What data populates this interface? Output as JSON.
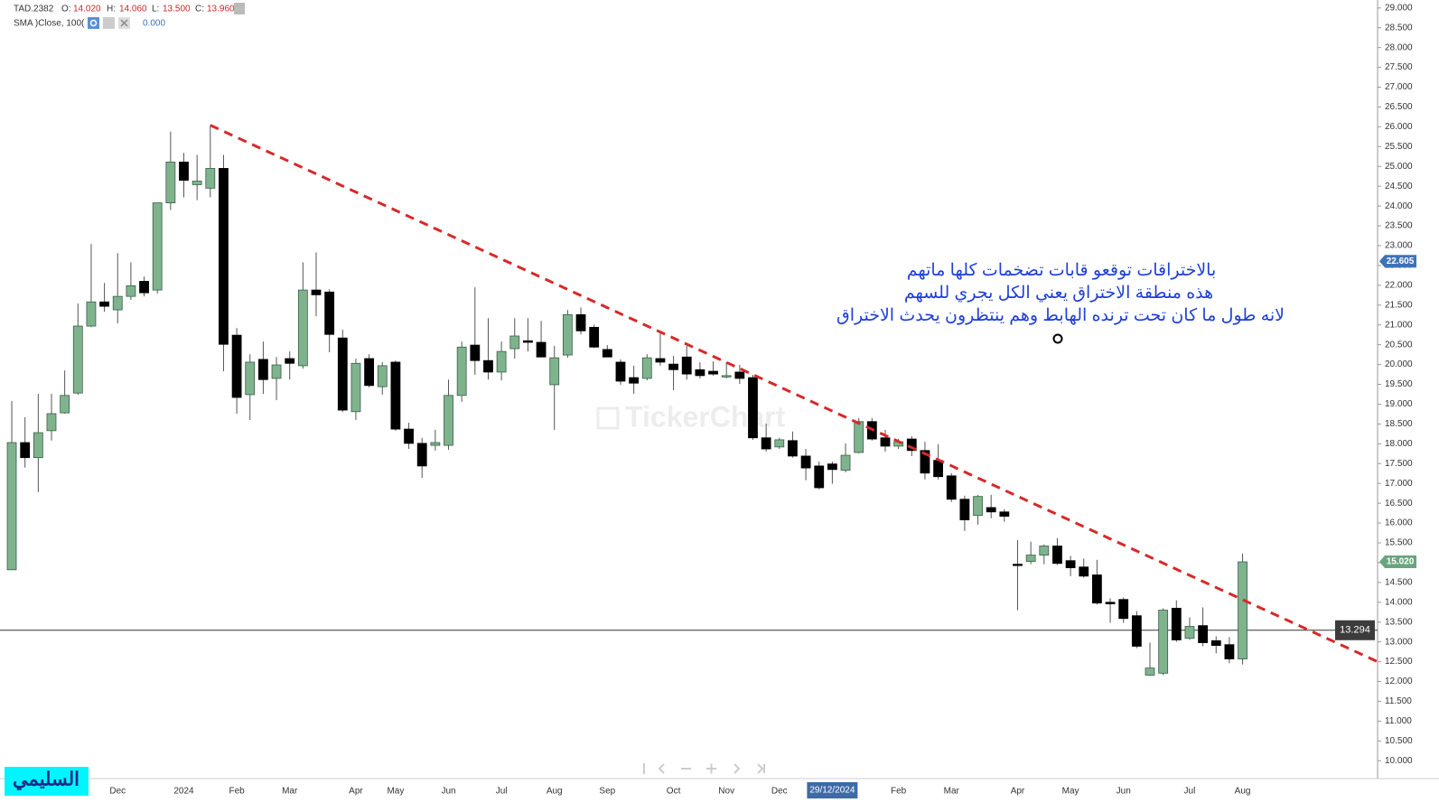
{
  "chart_data": {
    "type": "candlestick",
    "header": {
      "symbol": "TAD.2382",
      "fields": [
        {
          "label": "O:",
          "value": "14.020"
        },
        {
          "label": "H:",
          "value": "14.060"
        },
        {
          "label": "L:",
          "value": "13.500"
        },
        {
          "label": "C:",
          "value": "13.960"
        }
      ],
      "indicator": "SMA )Close, 100(",
      "indicator_value": "0.000"
    },
    "categories": [
      null,
      null,
      null,
      null,
      null,
      null,
      null,
      null,
      "Dec",
      null,
      null,
      null,
      null,
      "2024",
      null,
      null,
      null,
      "Feb",
      null,
      null,
      null,
      "Mar",
      null,
      null,
      null,
      null,
      "Apr",
      null,
      null,
      "May",
      null,
      null,
      null,
      "Jun",
      null,
      null,
      null,
      "Jul",
      null,
      null,
      null,
      "Aug",
      null,
      null,
      null,
      "Sep",
      null,
      null,
      null,
      null,
      "Oct",
      null,
      null,
      null,
      "Nov",
      null,
      null,
      null,
      "Dec",
      null,
      null,
      null,
      "29/12/2024",
      null,
      null,
      null,
      null,
      "Feb",
      null,
      null,
      null,
      "Mar",
      null,
      null,
      null,
      null,
      "Apr",
      null,
      null,
      null,
      "May",
      null,
      null,
      null,
      "Jun",
      null,
      null,
      null,
      null,
      "Jul",
      null,
      null,
      null,
      "Aug"
    ],
    "open": [
      14.82,
      18.03,
      17.65,
      18.33,
      18.78,
      19.28,
      20.97,
      21.58,
      21.38,
      21.72,
      22.1,
      21.88,
      24.08,
      25.11,
      24.54,
      24.45,
      24.95,
      20.74,
      19.24,
      20.13,
      19.65,
      20.15,
      19.97,
      21.88,
      21.83,
      20.67,
      18.81,
      20.15,
      19.44,
      20.06,
      18.37,
      18.01,
      17.96,
      17.96,
      19.22,
      20.49,
      20.1,
      19.81,
      20.4,
      20.6,
      20.56,
      19.49,
      20.24,
      21.26,
      20.94,
      20.38,
      20.06,
      19.67,
      19.65,
      20.15,
      20.01,
      20.19,
      19.87,
      19.83,
      19.69,
      19.81,
      19.67,
      18.15,
      17.92,
      18.08,
      17.69,
      17.44,
      17.49,
      17.33,
      17.78,
      18.56,
      18.15,
      17.94,
      18.12,
      17.83,
      17.58,
      17.19,
      16.6,
      16.19,
      16.39,
      16.28,
      14.96,
      15.03,
      15.19,
      15.42,
      15.05,
      14.89,
      14.69,
      14.0,
      14.07,
      13.66,
      12.16,
      12.21,
      13.85,
      13.09,
      13.41,
      13.03,
      12.93,
      12.57
    ],
    "high": [
      19.08,
      18.67,
      19.26,
      19.26,
      19.85,
      21.54,
      23.04,
      22.06,
      22.81,
      22.58,
      22.22,
      24.08,
      25.88,
      25.34,
      25.29,
      26.04,
      25.29,
      20.92,
      20.26,
      20.58,
      20.19,
      20.33,
      22.58,
      22.83,
      21.9,
      20.88,
      20.15,
      20.26,
      20.06,
      20.1,
      18.53,
      18.15,
      18.35,
      19.62,
      20.58,
      21.95,
      21.17,
      20.58,
      21.17,
      21.17,
      21.1,
      20.47,
      21.38,
      21.44,
      21.01,
      20.49,
      20.13,
      19.97,
      20.26,
      20.79,
      20.22,
      20.47,
      20.06,
      20.08,
      20.06,
      19.99,
      19.74,
      18.51,
      18.15,
      18.31,
      17.87,
      17.55,
      17.55,
      18.01,
      18.65,
      18.65,
      18.35,
      18.12,
      18.19,
      18.05,
      17.99,
      17.26,
      16.69,
      16.71,
      16.71,
      16.35,
      15.57,
      15.53,
      15.46,
      15.62,
      15.17,
      15.1,
      15.07,
      14.1,
      14.12,
      13.78,
      12.98,
      13.85,
      14.05,
      13.62,
      13.87,
      13.14,
      13.12,
      15.23
    ],
    "low": [
      14.82,
      17.4,
      16.78,
      18.08,
      18.76,
      19.24,
      20.94,
      21.33,
      21.04,
      21.63,
      21.72,
      21.79,
      23.9,
      24.22,
      24.15,
      24.22,
      19.83,
      18.76,
      18.6,
      19.26,
      19.1,
      19.62,
      19.9,
      21.22,
      20.31,
      18.8,
      18.6,
      19.42,
      19.24,
      18.33,
      17.87,
      17.14,
      17.83,
      17.85,
      19.06,
      19.74,
      19.62,
      19.6,
      20.15,
      20.33,
      20.19,
      18.35,
      20.17,
      20.76,
      20.42,
      20.19,
      19.49,
      19.26,
      19.6,
      19.97,
      19.35,
      19.62,
      19.65,
      19.72,
      19.65,
      19.51,
      18.1,
      17.8,
      17.87,
      17.65,
      17.08,
      16.85,
      16.99,
      17.28,
      17.76,
      18.08,
      17.8,
      17.87,
      17.69,
      17.1,
      17.1,
      16.53,
      15.8,
      15.96,
      16.12,
      16.03,
      13.8,
      14.96,
      14.96,
      14.94,
      14.66,
      14.62,
      13.94,
      13.48,
      13.48,
      12.84,
      12.14,
      12.16,
      13.0,
      13.05,
      12.89,
      12.71,
      12.46,
      12.43
    ],
    "close": [
      18.03,
      17.65,
      18.28,
      18.76,
      19.22,
      20.97,
      21.58,
      21.47,
      21.72,
      21.99,
      21.81,
      24.08,
      25.11,
      24.65,
      24.63,
      24.95,
      20.51,
      19.17,
      20.06,
      19.62,
      19.99,
      20.03,
      21.88,
      21.76,
      20.76,
      18.85,
      20.03,
      19.47,
      19.97,
      18.37,
      18.01,
      17.44,
      18.03,
      19.22,
      20.44,
      20.1,
      19.81,
      20.33,
      20.72,
      20.56,
      20.19,
      20.17,
      21.26,
      20.85,
      20.44,
      20.19,
      19.58,
      19.53,
      20.17,
      20.06,
      19.87,
      19.76,
      19.72,
      19.76,
      19.72,
      19.65,
      18.15,
      17.87,
      18.1,
      17.69,
      17.39,
      16.89,
      17.35,
      17.71,
      18.56,
      18.12,
      17.94,
      18.05,
      17.83,
      17.26,
      17.17,
      16.6,
      16.08,
      16.67,
      16.28,
      16.17,
      14.94,
      15.19,
      15.42,
      14.98,
      14.87,
      14.66,
      13.98,
      13.96,
      13.59,
      12.89,
      12.34,
      13.8,
      13.05,
      13.39,
      12.98,
      12.91,
      12.57,
      15.02
    ],
    "up_color": "#7fb38e",
    "down_color": "#000000",
    "xlim": [
      -0.89,
      103.2
    ],
    "ylim": [
      9.55,
      29.2
    ],
    "yticks": [
      {
        "value": 10,
        "label": "10.000"
      },
      {
        "value": 10.5,
        "label": "10.500"
      },
      {
        "value": 11,
        "label": "11.000"
      },
      {
        "value": 11.5,
        "label": "11.500"
      },
      {
        "value": 12,
        "label": "12.000"
      },
      {
        "value": 12.5,
        "label": "12.500"
      },
      {
        "value": 13,
        "label": "13.000"
      },
      {
        "value": 13.5,
        "label": "13.500"
      },
      {
        "value": 14,
        "label": "14.000"
      },
      {
        "value": 14.5,
        "label": "14.500"
      },
      {
        "value": 15,
        "label": "15.000"
      },
      {
        "value": 15.5,
        "label": "15.500"
      },
      {
        "value": 16,
        "label": "16.000"
      },
      {
        "value": 16.5,
        "label": "16.500"
      },
      {
        "value": 17,
        "label": "17.000"
      },
      {
        "value": 17.5,
        "label": "17.500"
      },
      {
        "value": 18,
        "label": "18.000"
      },
      {
        "value": 18.5,
        "label": "18.500"
      },
      {
        "value": 19,
        "label": "19.000"
      },
      {
        "value": 19.5,
        "label": "19.500"
      },
      {
        "value": 20,
        "label": "20.000"
      },
      {
        "value": 20.5,
        "label": "20.500"
      },
      {
        "value": 21,
        "label": "21.000"
      },
      {
        "value": 21.5,
        "label": "21.500"
      },
      {
        "value": 22,
        "label": "22.000"
      },
      {
        "value": 22.5,
        "label": "22.500"
      },
      {
        "value": 23,
        "label": "23.000"
      },
      {
        "value": 23.5,
        "label": "23.500"
      },
      {
        "value": 24,
        "label": "24.000"
      },
      {
        "value": 24.5,
        "label": "24.500"
      },
      {
        "value": 25,
        "label": "25.000"
      },
      {
        "value": 25.5,
        "label": "25.500"
      },
      {
        "value": 26,
        "label": "26.000"
      },
      {
        "value": 26.5,
        "label": "26.500"
      },
      {
        "value": 27,
        "label": "27.000"
      },
      {
        "value": 27.5,
        "label": "27.500"
      },
      {
        "value": 28,
        "label": "28.000"
      },
      {
        "value": 28.5,
        "label": "28.500"
      },
      {
        "value": 29,
        "label": "29.000"
      }
    ],
    "hline": {
      "value": 13.294,
      "label": "13.294"
    },
    "price_markers": [
      {
        "value": 22.605,
        "label": "22.605",
        "color": "#3f72b8"
      },
      {
        "value": 15.02,
        "label": "15.020",
        "color": "#6aa57e"
      }
    ],
    "trendline": {
      "x": [
        15,
        103.2
      ],
      "y": [
        26.04,
        12.5
      ],
      "color": "#d62a2a"
    },
    "annotation": {
      "lines": [
        "بالاختراقات توقعو قابات تضخمات كلها ماتهم",
        "هذه منطقة الاختراق يعني الكل يجري للسهم",
        "لانه طول ما كان تحت ترنده الهابط وهم ينتظرون يحدث الاختراق"
      ],
      "color": "#1f3fd8"
    },
    "watermark": "TickerChart",
    "signature": "السليمي"
  }
}
